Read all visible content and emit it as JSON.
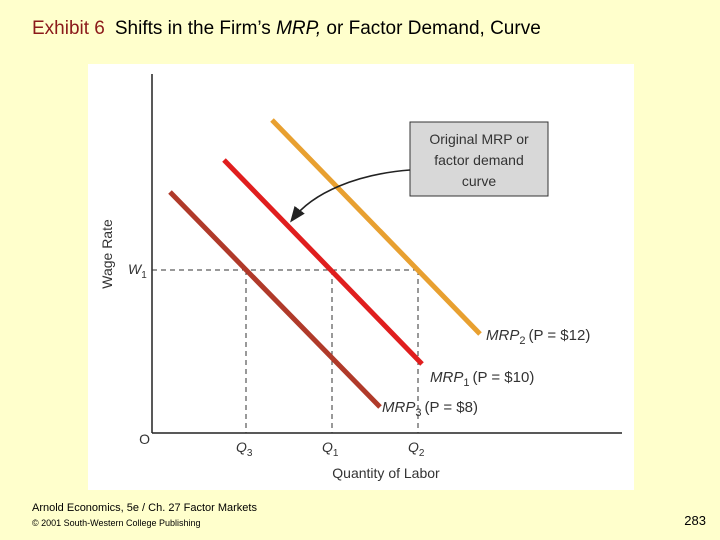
{
  "slide": {
    "exhibit_label": "Exhibit 6",
    "title_part1": "Shifts in the Firm’s ",
    "title_italic": "MRP,",
    "title_part2": " or Factor Demand, Curve"
  },
  "footer": {
    "source_line": "Arnold Economics, 5e / Ch. 27  Factor Markets",
    "copyright_line": "© 2001 South-Western College Publishing",
    "page_number": "283"
  },
  "chart_data": {
    "type": "line",
    "title": "Shifts in the Firm’s MRP, or Factor Demand, Curve",
    "xlabel": "Quantity of Labor",
    "ylabel": "Wage Rate",
    "origin_label": "O",
    "y_tick_label": "W1",
    "x_tick_labels": [
      "Q3",
      "Q1",
      "Q2"
    ],
    "series": [
      {
        "name": "MRP2 (P = $12)",
        "subscript": "2",
        "price_text": "(P = $12)",
        "color": "#e8a030"
      },
      {
        "name": "MRP1 (P = $10)",
        "subscript": "1",
        "price_text": "(P = $10)",
        "color": "#e01e1e"
      },
      {
        "name": "MRP3 (P = $8)",
        "subscript": "3",
        "price_text": "(P = $8)",
        "color": "#b03a2a"
      }
    ],
    "annotation": {
      "lines": [
        "Original MRP or",
        "factor demand",
        "curve"
      ],
      "points_to": "MRP1"
    }
  }
}
